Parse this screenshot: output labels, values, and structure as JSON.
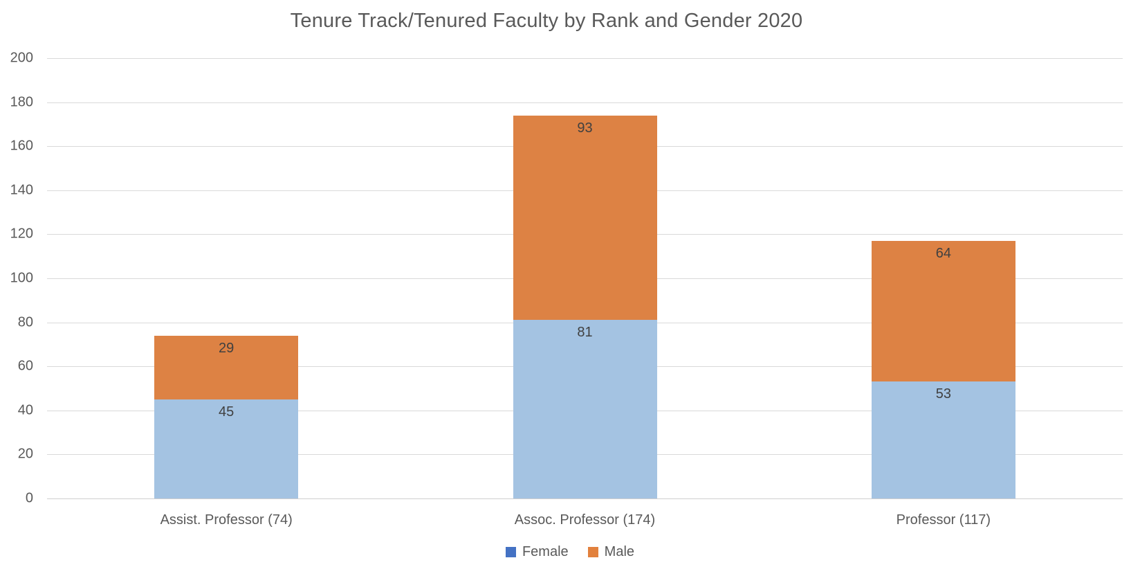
{
  "chart_data": {
    "type": "bar",
    "stacked": true,
    "title": "Tenure Track/Tenured Faculty by Rank and Gender 2020",
    "categories": [
      "Assist. Professor (74)",
      "Assoc. Professor (174)",
      "Professor (117)"
    ],
    "series": [
      {
        "name": "Female",
        "values": [
          45,
          81,
          53
        ],
        "bar_color": "#A4C3E2",
        "legend_color": "#4472C4"
      },
      {
        "name": "Male",
        "values": [
          29,
          93,
          64
        ],
        "bar_color": "#DD8244",
        "legend_color": "#E2813D"
      }
    ],
    "category_totals": [
      74,
      174,
      117
    ],
    "ylim": [
      0,
      200
    ],
    "ytick_step": 20,
    "grid": true,
    "legend_position": "bottom",
    "xlabel": "",
    "ylabel": ""
  },
  "colors": {
    "grid": "#D9D9D9",
    "baseline": "#CFCFCF",
    "title_text": "#595959",
    "tick_text": "#595959",
    "category_text": "#595959",
    "data_label_text": "#404040",
    "legend_text": "#595959",
    "background": "#FFFFFF"
  }
}
